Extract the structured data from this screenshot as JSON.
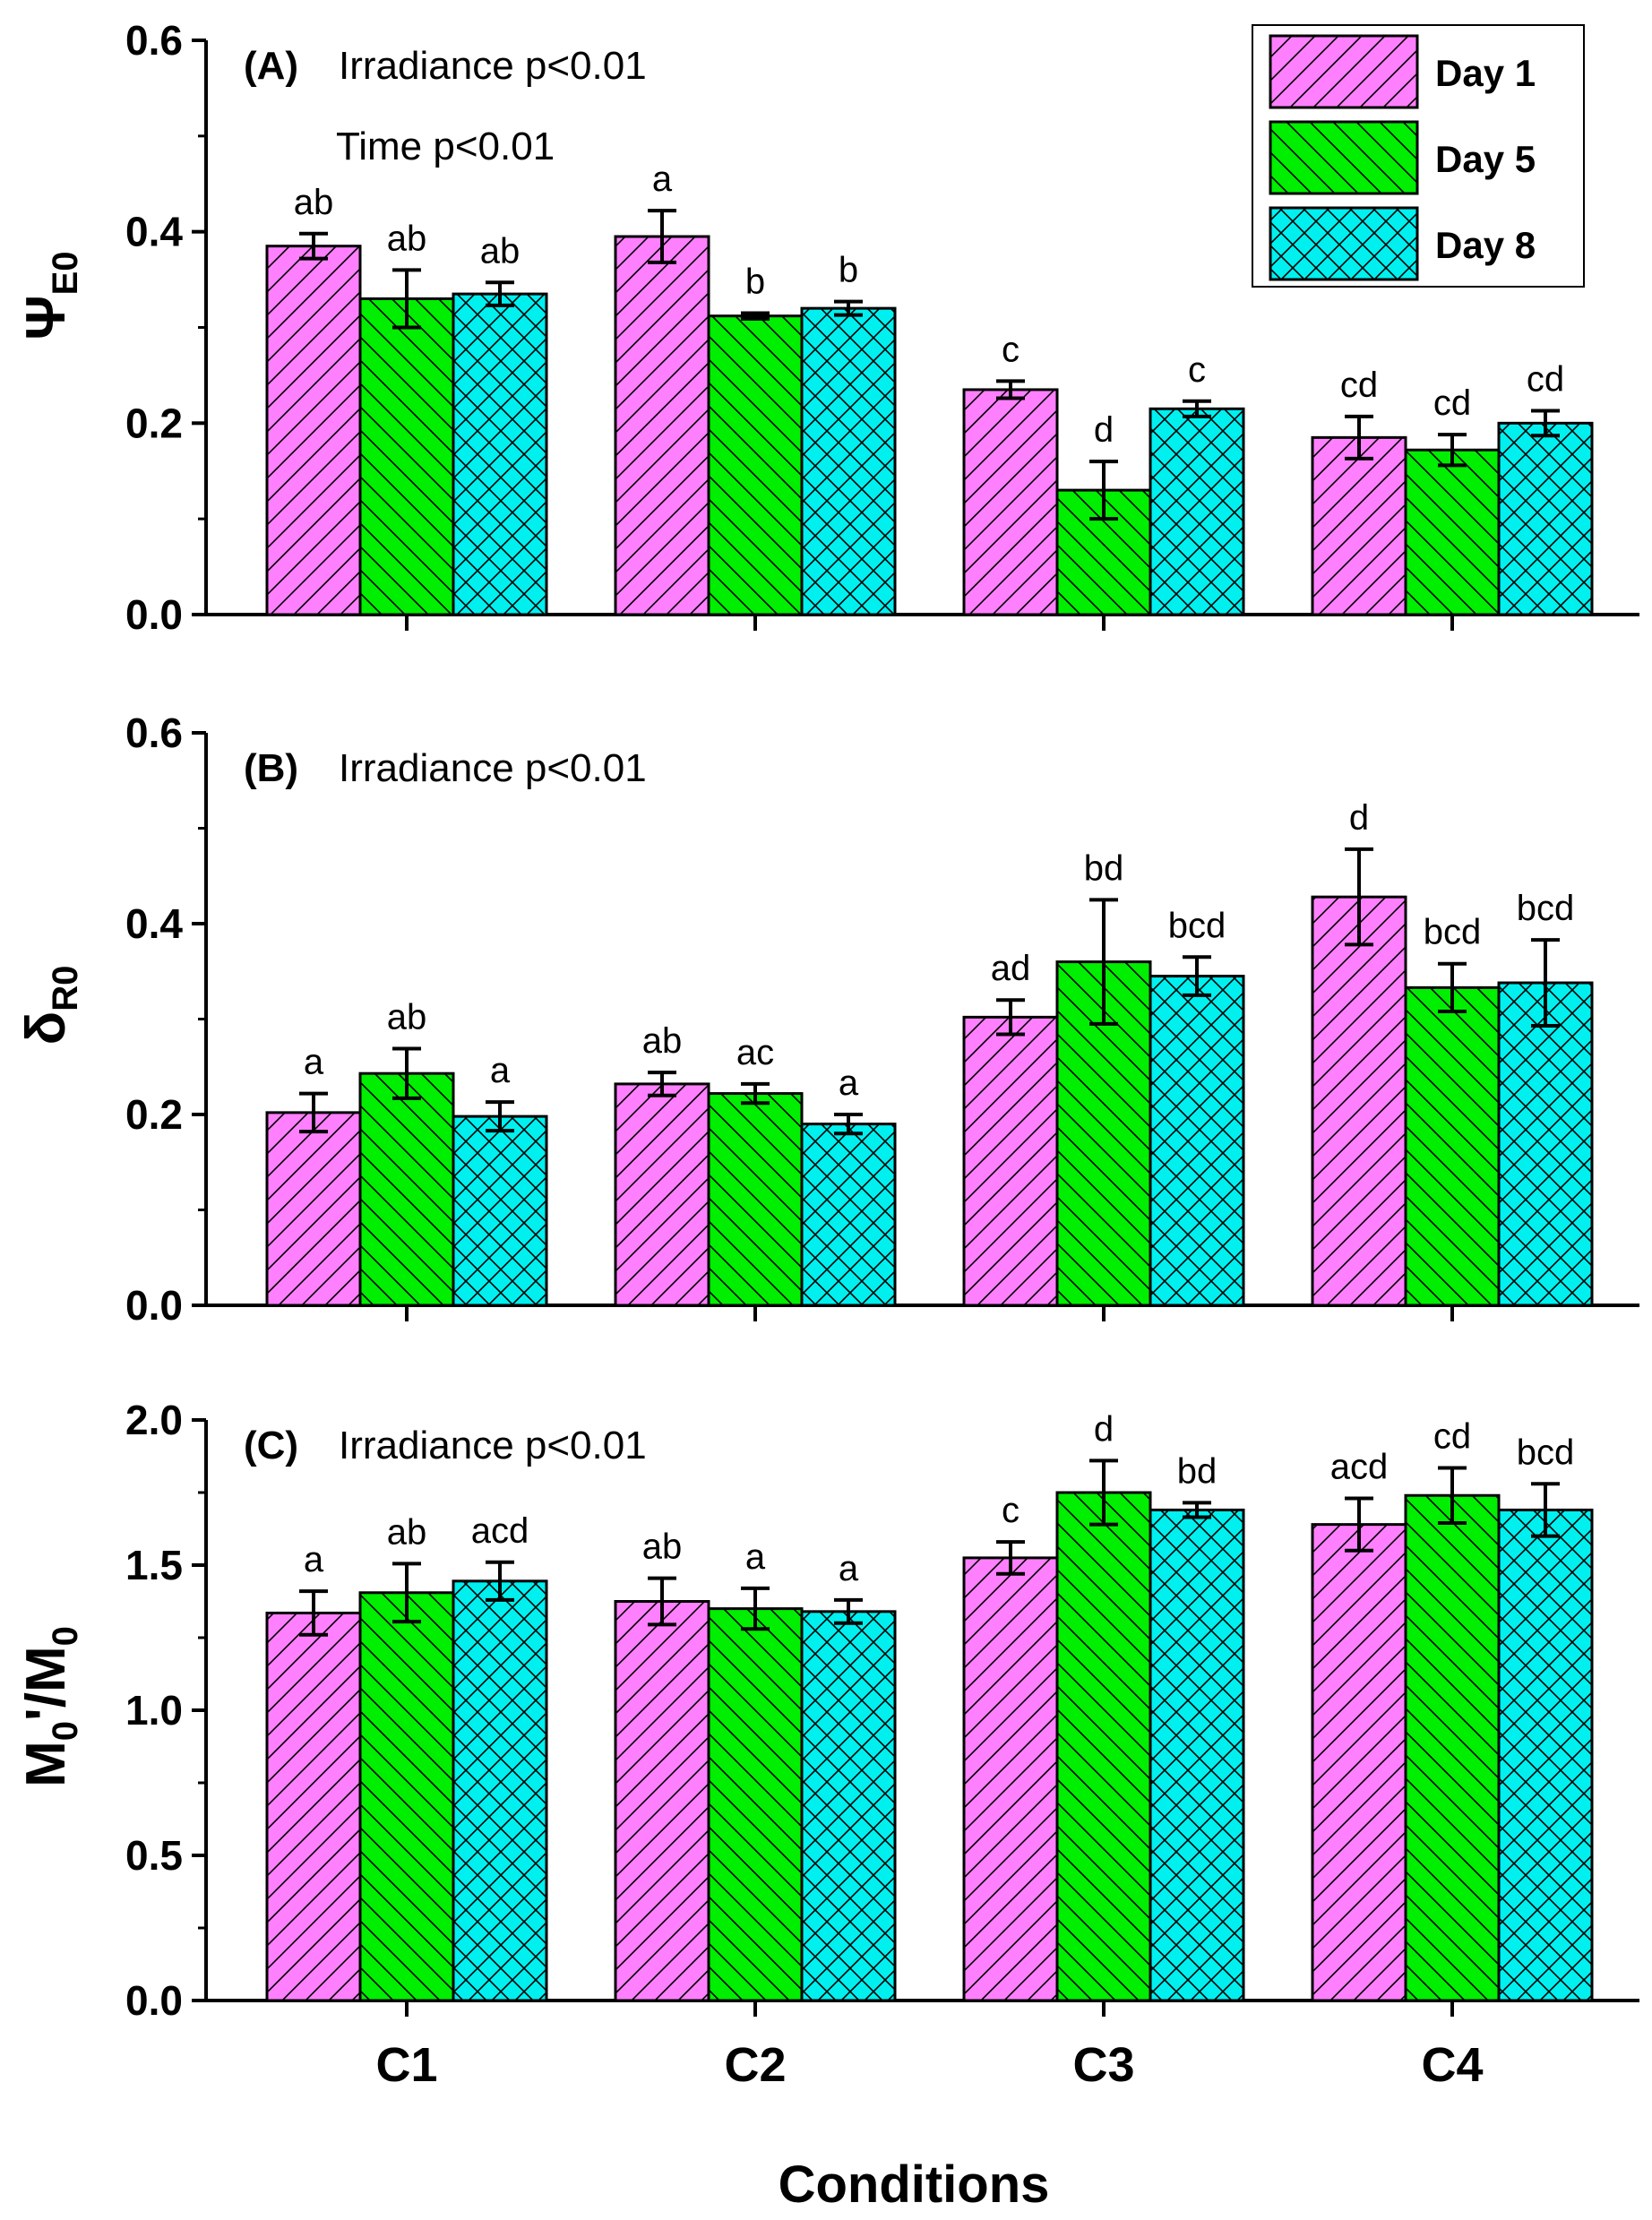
{
  "chart_data": [
    {
      "type": "bar",
      "panel": "(A)",
      "annotations": [
        "Irradiance p<0.01",
        "Time p<0.01"
      ],
      "ylabel": "Ψ",
      "ylabel_sub": "E0",
      "ylim": [
        0,
        0.6
      ],
      "yticks": [
        "0.0",
        "0.2",
        "0.4",
        "0.6"
      ],
      "categories": [
        "C1",
        "C2",
        "C3",
        "C4"
      ],
      "series": [
        {
          "name": "Day 1",
          "values": [
            0.385,
            0.395,
            0.235,
            0.185
          ],
          "errors": [
            0.013,
            0.027,
            0.009,
            0.022
          ],
          "letters": [
            "ab",
            "a",
            "c",
            "cd"
          ]
        },
        {
          "name": "Day 5",
          "values": [
            0.33,
            0.312,
            0.13,
            0.172
          ],
          "errors": [
            0.03,
            0.003,
            0.03,
            0.016
          ],
          "letters": [
            "ab",
            "b",
            "d",
            "cd"
          ]
        },
        {
          "name": "Day 8",
          "values": [
            0.335,
            0.32,
            0.215,
            0.2
          ],
          "errors": [
            0.012,
            0.007,
            0.008,
            0.013
          ],
          "letters": [
            "ab",
            "b",
            "c",
            "cd"
          ]
        }
      ]
    },
    {
      "type": "bar",
      "panel": "(B)",
      "annotations": [
        "Irradiance p<0.01"
      ],
      "ylabel": "δ",
      "ylabel_sub": "R0",
      "ylim": [
        0,
        0.6
      ],
      "yticks": [
        "0.0",
        "0.2",
        "0.4",
        "0.6"
      ],
      "categories": [
        "C1",
        "C2",
        "C3",
        "C4"
      ],
      "series": [
        {
          "name": "Day 1",
          "values": [
            0.202,
            0.232,
            0.302,
            0.428
          ],
          "errors": [
            0.02,
            0.012,
            0.018,
            0.05
          ],
          "letters": [
            "a",
            "ab",
            "ad",
            "d"
          ]
        },
        {
          "name": "Day 5",
          "values": [
            0.243,
            0.222,
            0.36,
            0.333
          ],
          "errors": [
            0.026,
            0.01,
            0.065,
            0.025
          ],
          "letters": [
            "ab",
            "ac",
            "bd",
            "bcd"
          ]
        },
        {
          "name": "Day 8",
          "values": [
            0.198,
            0.19,
            0.345,
            0.338
          ],
          "errors": [
            0.015,
            0.01,
            0.02,
            0.045
          ],
          "letters": [
            "a",
            "a",
            "bcd",
            "bcd"
          ]
        }
      ]
    },
    {
      "type": "bar",
      "panel": "(C)",
      "annotations": [
        "Irradiance p<0.01"
      ],
      "ylabel": "M",
      "ylabel_sub": "0",
      "ylabel_mid": "'/M",
      "ylabel_sub2": "0",
      "ylim": [
        0,
        2.0
      ],
      "yticks": [
        "0.0",
        "0.5",
        "1.0",
        "1.5",
        "2.0"
      ],
      "categories": [
        "C1",
        "C2",
        "C3",
        "C4"
      ],
      "xlabel": "Conditions",
      "series": [
        {
          "name": "Day 1",
          "values": [
            1.335,
            1.375,
            1.525,
            1.64
          ],
          "errors": [
            0.075,
            0.08,
            0.055,
            0.09
          ],
          "letters": [
            "a",
            "ab",
            "c",
            "acd"
          ]
        },
        {
          "name": "Day 5",
          "values": [
            1.405,
            1.35,
            1.75,
            1.74
          ],
          "errors": [
            0.1,
            0.07,
            0.11,
            0.095
          ],
          "letters": [
            "ab",
            "a",
            "d",
            "cd"
          ]
        },
        {
          "name": "Day 8",
          "values": [
            1.445,
            1.34,
            1.69,
            1.69
          ],
          "errors": [
            0.065,
            0.04,
            0.025,
            0.09
          ],
          "letters": [
            "acd",
            "a",
            "bd",
            "bcd"
          ]
        }
      ]
    }
  ],
  "legend": {
    "position": "top-right",
    "items": [
      {
        "label": "Day 1",
        "color": "#ff80ff",
        "pattern": "forward-diagonal"
      },
      {
        "label": "Day 5",
        "color": "#00ee00",
        "pattern": "back-diagonal"
      },
      {
        "label": "Day 8",
        "color": "#00f0f0",
        "pattern": "crosshatch"
      }
    ]
  }
}
